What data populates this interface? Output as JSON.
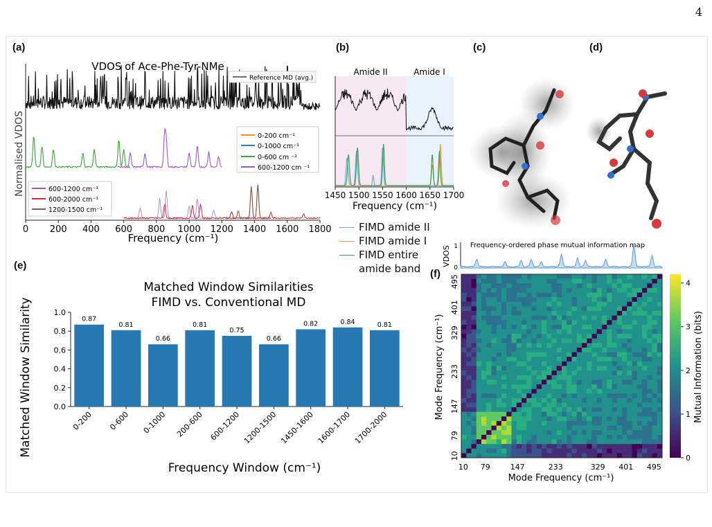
{
  "page_number": "4",
  "panel_labels": {
    "a": "(a)",
    "b": "(b)",
    "c": "(c)",
    "d": "(d)",
    "e": "(e)",
    "f": "(f)"
  },
  "colors": {
    "bar": "#2878b4",
    "amide2": "#6aaed6",
    "amide1": "#f39a34",
    "entire": "#3f9c5a",
    "c0_200": "#ff8c1a",
    "c0_1000": "#2b7fc0",
    "c0_600": "#3aa33a",
    "c600_1200": "#9b59c7",
    "c600_2000": "#d62728",
    "c1200_1500": "#8c564b"
  },
  "panel_a": {
    "title": "VDOS of Ace-Phe-Tyr-NMe",
    "ylabel": "Normalised VDOS",
    "xlabel": "Frequency (cm⁻¹)",
    "ticks": [
      "0",
      "200",
      "400",
      "600",
      "800",
      "1000",
      "1200",
      "1400",
      "1600",
      "1800"
    ],
    "legend_top": "Reference MD (avg.)",
    "legend_mid": [
      "0-200 cm⁻¹",
      "0-1000 cm⁻¹",
      "0-600 cm ⁻¹",
      "600-1200 cm ⁻¹"
    ],
    "legend_bot": [
      "600-1200 cm⁻¹",
      "600-2000 cm⁻¹",
      "1200-1500 cm⁻¹"
    ]
  },
  "panel_b": {
    "region_left": "Amide II",
    "region_right": "Amide I",
    "ticks": [
      "1450",
      "1500",
      "1550",
      "1600",
      "1650",
      "1700"
    ],
    "xlabel": "Frequency (cm⁻¹)",
    "legend": [
      "FIMD amide II",
      "FIMD amide I",
      "FIMD entire amide band"
    ]
  },
  "panel_f": {
    "vdos_title": "Frequency-ordered phase mutual information map",
    "vdos_ylabel": "VDOS",
    "vdos_ticks": [
      "1",
      "0"
    ],
    "xlabel": "Mode Frequency (cm⁻¹)",
    "ylabel": "Mode Frequency (cm⁻¹)",
    "ticks": [
      "10",
      "79",
      "147",
      "233",
      "329",
      "401",
      "495"
    ],
    "colorbar_label": "Mutual Information (bits)",
    "colorbar_ticks": [
      "0",
      "1",
      "2",
      "3",
      "4"
    ]
  },
  "chart_data": [
    {
      "type": "bar",
      "title": "Matched Window Similarities",
      "subtitle": "FIMD vs. Conventional MD",
      "xlabel": "Frequency Window (cm⁻¹)",
      "ylabel": "Matched Window Similarity",
      "ylim": [
        0,
        1.0
      ],
      "yticks": [
        "0.0",
        "0.2",
        "0.4",
        "0.6",
        "0.8",
        "1.0"
      ],
      "categories": [
        "0-200",
        "0-600",
        "0-1000",
        "200-600",
        "600-1200",
        "1200-1500",
        "1450-1600",
        "1600-1700",
        "1700-2000"
      ],
      "values": [
        0.87,
        0.81,
        0.66,
        0.81,
        0.75,
        0.66,
        0.82,
        0.84,
        0.81
      ],
      "value_labels": [
        "0.87",
        "0.81",
        "0.66",
        "0.81",
        "0.75",
        "0.66",
        "0.82",
        "0.84",
        "0.81"
      ],
      "grid": false
    }
  ]
}
